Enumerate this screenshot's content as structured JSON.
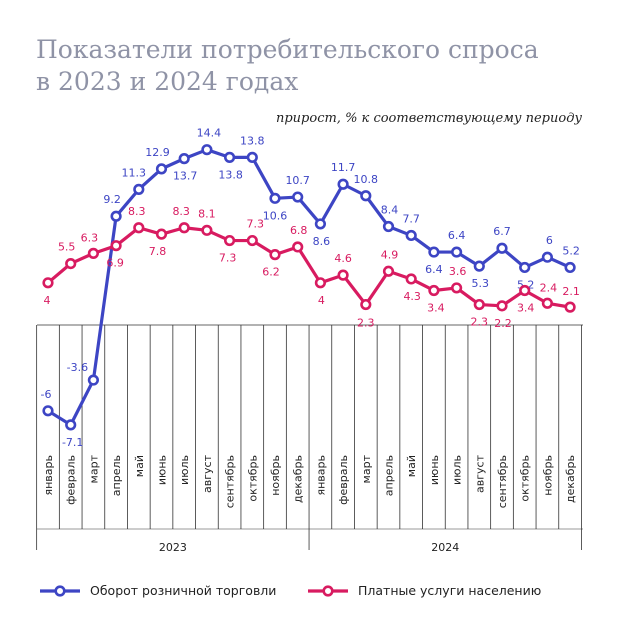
{
  "chart_data": {
    "type": "line",
    "title_line1": "Показатели потребительского спроса",
    "title_line2": "в 2023 и 2024 годах",
    "subtitle": "прирост, % к соответствующему периоду",
    "categories": [
      "январь",
      "февраль",
      "март",
      "апрель",
      "май",
      "июнь",
      "июль",
      "август",
      "сентябрь",
      "октябрь",
      "ноябрь",
      "декабрь",
      "январь",
      "февраль",
      "март",
      "апрель",
      "май",
      "июнь",
      "июль",
      "август",
      "сентябрь",
      "октябрь",
      "ноябрь",
      "декабрь"
    ],
    "years": [
      "2023",
      "2024"
    ],
    "series": [
      {
        "name": "Оборот розничной торговли",
        "color": "#3d45c4",
        "values": [
          -6,
          -7.1,
          -3.6,
          9.2,
          11.3,
          12.9,
          13.7,
          14.4,
          13.8,
          13.8,
          10.6,
          10.7,
          8.6,
          11.7,
          10.8,
          8.4,
          7.7,
          6.4,
          6.4,
          5.3,
          6.7,
          5.2,
          6,
          5.2
        ],
        "labels": [
          "-6",
          "-7.1",
          "-3.6",
          "9.2",
          "11.3",
          "12.9",
          "13.7",
          "14.4",
          "13.8",
          "13.8",
          "10.6",
          "10.7",
          "8.6",
          "11.7",
          "10.8",
          "8.4",
          "7.7",
          "6.4",
          "6.4",
          "5.3",
          "6.7",
          "5.2",
          "6",
          "5.2"
        ]
      },
      {
        "name": "Платные услуги населению",
        "color": "#d81b60",
        "values": [
          4,
          5.5,
          6.3,
          6.9,
          8.3,
          7.8,
          8.3,
          8.1,
          7.3,
          7.3,
          6.2,
          6.8,
          4,
          4.6,
          2.3,
          4.9,
          4.3,
          3.4,
          3.6,
          2.3,
          2.2,
          3.4,
          2.4,
          2.1
        ],
        "labels": [
          "4",
          "5.5",
          "6.3",
          "6.9",
          "8.3",
          "7.8",
          "8.3",
          "8.1",
          "7.3",
          "7.3",
          "6.2",
          "6.8",
          "4",
          "4.6",
          "2.3",
          "4.9",
          "4.3",
          "3.4",
          "3.6",
          "2.3",
          "2.2",
          "3.4",
          "2.4",
          "2.1"
        ]
      }
    ],
    "legend": "bottom"
  }
}
